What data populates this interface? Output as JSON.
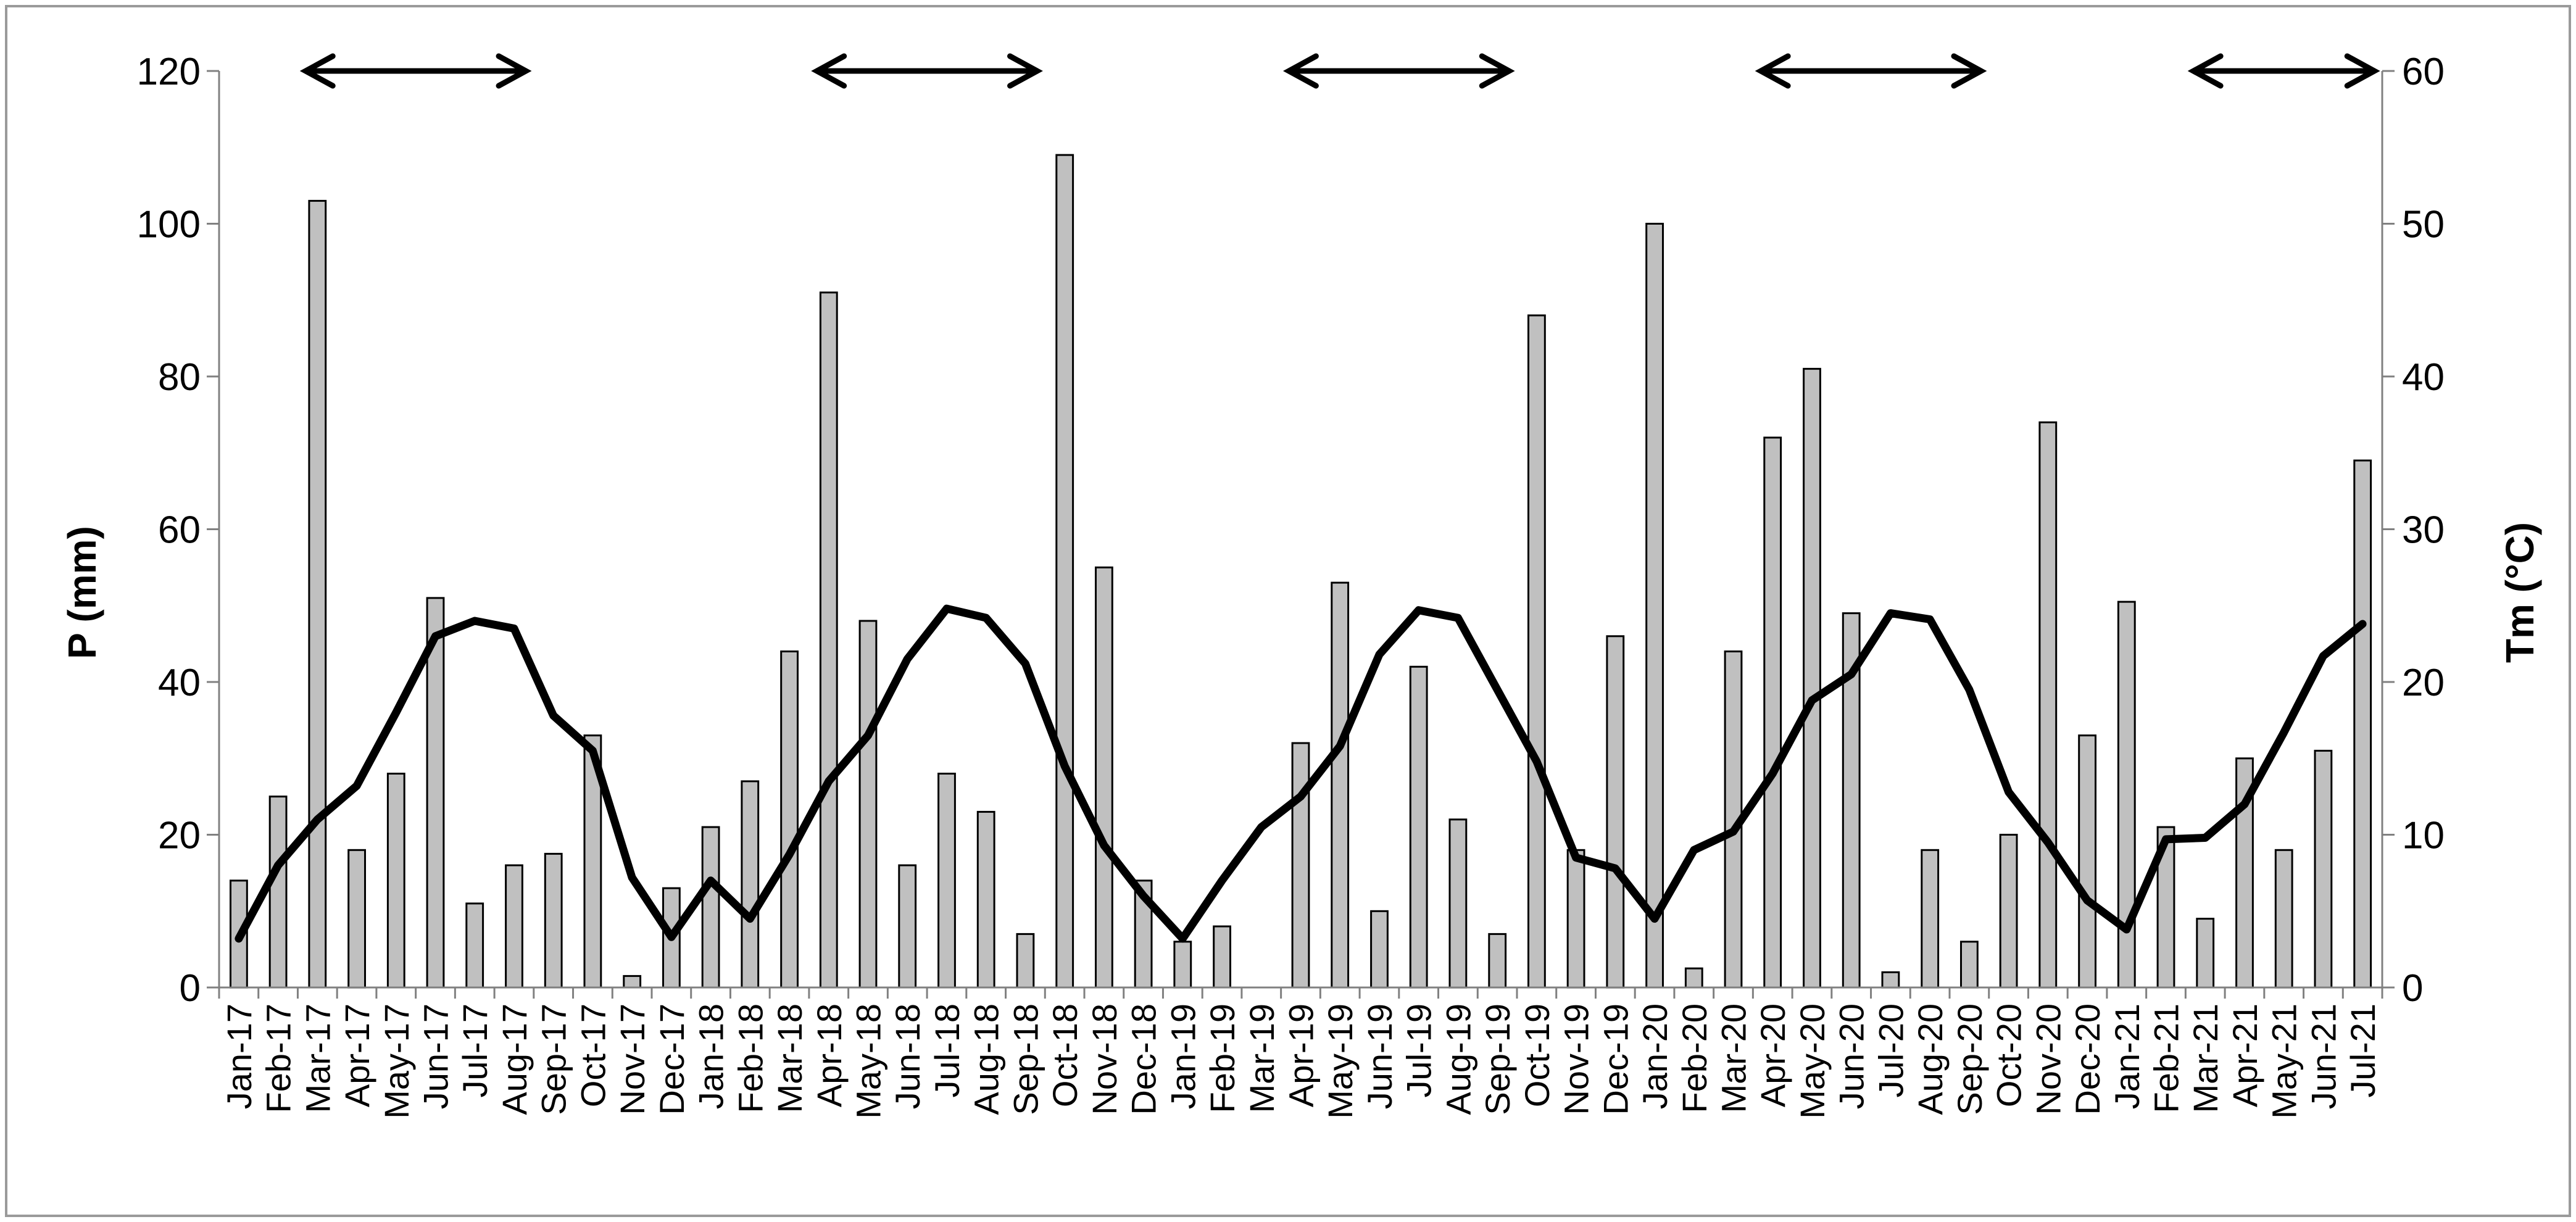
{
  "chart_data": {
    "type": "bar+line",
    "title": "",
    "categories": [
      "Jan-17",
      "Feb-17",
      "Mar-17",
      "Apr-17",
      "May-17",
      "Jun-17",
      "Jul-17",
      "Aug-17",
      "Sep-17",
      "Oct-17",
      "Nov-17",
      "Dec-17",
      "Jan-18",
      "Feb-18",
      "Mar-18",
      "Apr-18",
      "May-18",
      "Jun-18",
      "Jul-18",
      "Aug-18",
      "Sep-18",
      "Oct-18",
      "Nov-18",
      "Dec-18",
      "Jan-19",
      "Feb-19",
      "Mar-19",
      "Apr-19",
      "May-19",
      "Jun-19",
      "Jul-19",
      "Aug-19",
      "Sep-19",
      "Oct-19",
      "Nov-19",
      "Dec-19",
      "Jan-20",
      "Feb-20",
      "Mar-20",
      "Apr-20",
      "May-20",
      "Jun-20",
      "Jul-20",
      "Aug-20",
      "Sep-20",
      "Oct-20",
      "Nov-20",
      "Dec-20",
      "Jan-21",
      "Feb-21",
      "Mar-21",
      "Apr-21",
      "May-21",
      "Jun-21",
      "Jul-21"
    ],
    "series": [
      {
        "name": "P",
        "type": "bar",
        "axis": "left",
        "color": "#c0c0c0",
        "values": [
          14,
          25,
          103,
          18,
          28,
          51,
          11,
          16,
          17.5,
          33,
          1.5,
          13,
          21,
          27,
          44,
          91,
          48,
          16,
          28,
          23,
          7,
          109,
          55,
          14,
          6,
          8,
          0,
          32,
          53,
          10,
          42,
          22,
          7,
          88,
          18,
          46,
          100,
          2.5,
          44,
          72,
          81,
          49,
          2,
          18,
          6,
          20,
          74,
          33,
          50.5,
          21,
          9,
          30,
          18,
          31,
          69
        ]
      },
      {
        "name": "Tm",
        "type": "line",
        "axis": "right",
        "color": "#000000",
        "values": [
          3.2,
          8,
          11,
          13.2,
          18,
          23,
          24,
          23.5,
          17.8,
          15.5,
          7.2,
          3.3,
          7,
          4.5,
          8.7,
          13.5,
          16.5,
          21.5,
          24.8,
          24.2,
          21.2,
          14.5,
          9.3,
          6,
          3.2,
          7,
          10.5,
          12.5,
          15.8,
          21.8,
          24.7,
          24.2,
          19.5,
          14.8,
          8.5,
          7.8,
          4.5,
          9,
          10.2,
          14,
          18.8,
          20.5,
          24.5,
          24.1,
          19.5,
          12.8,
          9.5,
          5.7,
          3.8,
          9.7,
          9.8,
          12,
          16.7,
          21.7,
          23.8
        ]
      }
    ],
    "y_left": {
      "label": "P (mm)",
      "ylim": [
        0,
        120
      ],
      "ticks": [
        "0",
        "20",
        "40",
        "60",
        "80",
        "100",
        "120"
      ]
    },
    "y_right": {
      "label": "Tm (°C)",
      "ylim": [
        0,
        60
      ],
      "ticks": [
        "0",
        "10",
        "20",
        "30",
        "40",
        "50",
        "60"
      ]
    },
    "annotations": [
      {
        "type": "double-arrow",
        "at_y": 120,
        "from": "Mar-17",
        "to": "Aug-17"
      },
      {
        "type": "double-arrow",
        "at_y": 120,
        "from": "Apr-18",
        "to": "Sep-18"
      },
      {
        "type": "double-arrow",
        "at_y": 120,
        "from": "Apr-19",
        "to": "Sep-19"
      },
      {
        "type": "double-arrow",
        "at_y": 120,
        "from": "Apr-20",
        "to": "Sep-20"
      },
      {
        "type": "double-arrow",
        "at_y": 120,
        "from": "Mar-21",
        "to": "Jul-21"
      }
    ],
    "grid": false,
    "legend": "none"
  }
}
